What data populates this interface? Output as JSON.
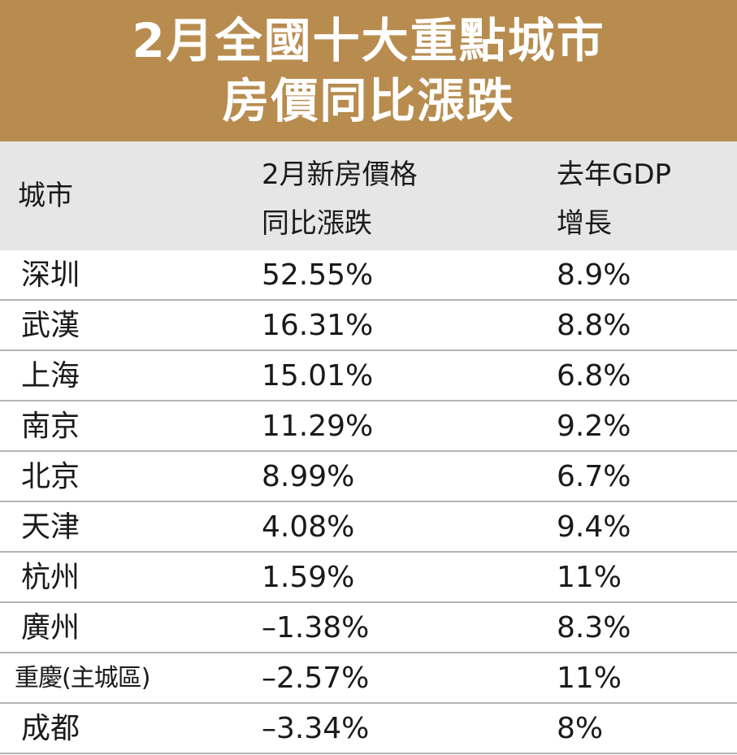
{
  "title": {
    "line1": "2月全國十大重點城市",
    "line2": "房價同比漲跌"
  },
  "header": {
    "city": "城市",
    "price_line1": "2月新房價格",
    "price_line2": "同比漲跌",
    "gdp_line1": "去年GDP",
    "gdp_line2": "增長"
  },
  "rows": [
    {
      "city": "深圳",
      "price_change": "52.55%",
      "gdp_growth": "8.9%"
    },
    {
      "city": "武漢",
      "price_change": "16.31%",
      "gdp_growth": "8.8%"
    },
    {
      "city": "上海",
      "price_change": "15.01%",
      "gdp_growth": "6.8%"
    },
    {
      "city": "南京",
      "price_change": "11.29%",
      "gdp_growth": "9.2%"
    },
    {
      "city": "北京",
      "price_change": "8.99%",
      "gdp_growth": "6.7%"
    },
    {
      "city": "天津",
      "price_change": "4.08%",
      "gdp_growth": "9.4%"
    },
    {
      "city": "杭州",
      "price_change": "1.59%",
      "gdp_growth": "11%"
    },
    {
      "city": "廣州",
      "price_change": "–1.38%",
      "gdp_growth": "8.3%"
    },
    {
      "city": "重慶(主城區)",
      "price_change": "–2.57%",
      "gdp_growth": "11%"
    },
    {
      "city": "成都",
      "price_change": "–3.34%",
      "gdp_growth": "8%"
    }
  ],
  "colors": {
    "title_bg": "#b88c4f",
    "header_bg": "#e6e6e6",
    "row_separator": "#b5b5b5"
  }
}
